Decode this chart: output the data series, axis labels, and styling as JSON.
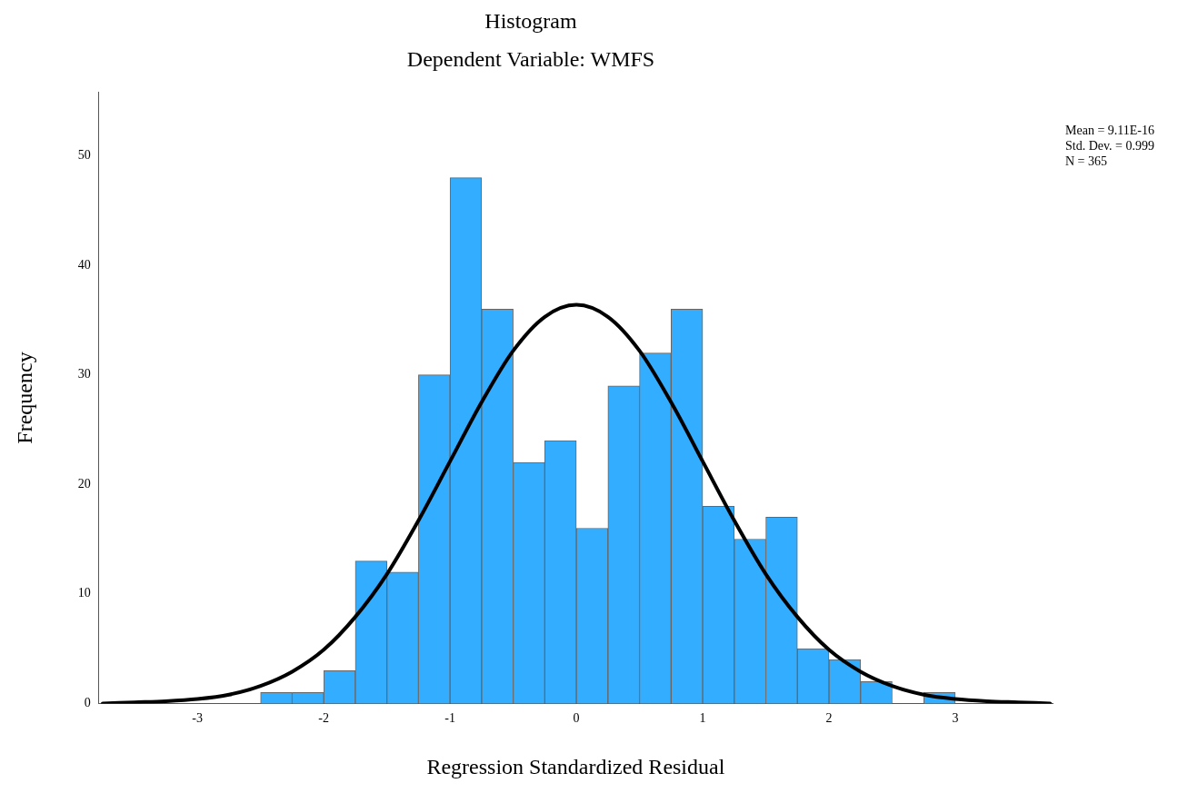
{
  "chart_data": {
    "type": "histogram",
    "title": "Histogram",
    "subtitle": "Dependent Variable: WMFS",
    "xlabel": "Regression Standardized Residual",
    "ylabel": "Frequency",
    "bins": [
      -2.5,
      -2.25,
      -2,
      -1.75,
      -1.5,
      -1.25,
      -1,
      -0.75,
      -0.5,
      -0.25,
      0,
      0.25,
      0.5,
      0.75,
      1,
      1.25,
      1.5,
      1.75,
      2,
      2.25,
      2.5,
      2.75,
      3
    ],
    "values": [
      1,
      1,
      3,
      13,
      12,
      30,
      48,
      36,
      22,
      24,
      16,
      29,
      32,
      36,
      18,
      15,
      17,
      5,
      4,
      2,
      0,
      1
    ],
    "color": "#33adff",
    "series": [
      {
        "type": "line",
        "color": "#000000",
        "x": [
          -3.75,
          -3.5,
          -3.25,
          -3,
          -2.75,
          -2.5,
          -2.25,
          -2,
          -1.75,
          -1.5,
          -1.25,
          -1,
          -0.75,
          -0.5,
          -0.25,
          0,
          0.25,
          0.5,
          0.75,
          1,
          1.25,
          1.5,
          1.75,
          2,
          2.25,
          2.5,
          2.75,
          3,
          3.25,
          3.5,
          3.75
        ],
        "values": [
          0,
          0.1,
          0.2,
          0.4,
          0.8,
          1.6,
          2.9,
          4.9,
          7.9,
          11.8,
          16.7,
          22.1,
          27.5,
          32.2,
          35.3,
          36.4,
          35.3,
          32.2,
          27.5,
          22.1,
          16.7,
          11.8,
          7.9,
          4.9,
          2.9,
          1.6,
          0.8,
          0.4,
          0.2,
          0.1,
          0
        ]
      }
    ],
    "xlim": [
      -3.78,
      3.77
    ],
    "xticks": [
      -3,
      -2,
      -1,
      0,
      1,
      2,
      3
    ],
    "ylim": [
      0,
      55.8
    ],
    "yticks": [
      0,
      10,
      20,
      30,
      40,
      50
    ],
    "grid": false,
    "legend": false,
    "marker": "none",
    "line_style": "solid",
    "annotations": [
      "Mean = 9.11E-16",
      "Std. Dev. = 0.999",
      "N = 365"
    ]
  }
}
